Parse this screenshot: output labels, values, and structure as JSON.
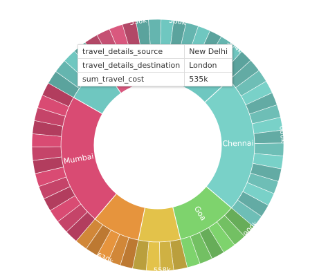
{
  "chart_data": {
    "type": "sunburst",
    "inner_ring": [
      {
        "name": "New Delhi",
        "label": "New",
        "color": "#6fc7c0",
        "share": 0.16
      },
      {
        "name": "Chennai",
        "label": "Chennai",
        "color": "#79d1c8",
        "share": 0.23
      },
      {
        "name": "Goa",
        "label": "Goa",
        "color": "#7ed36d",
        "share": 0.1
      },
      {
        "name": "segment-b",
        "label": "",
        "color": "#e3c24a",
        "share": 0.07
      },
      {
        "name": "segment-o",
        "label": "",
        "color": "#e6943d",
        "share": 0.08
      },
      {
        "name": "Mumbai",
        "label": "Mumbai",
        "color": "#d94b73",
        "share": 0.22
      },
      {
        "name": "segment-t",
        "label": "",
        "color": "#6fc7c0",
        "share": 0.07
      },
      {
        "name": "segment-top",
        "label": "",
        "color": "#d9587e",
        "share": 0.07
      }
    ],
    "outer_labels": [
      "536k",
      "560k",
      "504k",
      "600k",
      "900k",
      "558k",
      "630k"
    ],
    "tooltip": [
      {
        "field": "travel_details_source",
        "value": "New Delhi"
      },
      {
        "field": "travel_details_destination",
        "value": "London"
      },
      {
        "field": "sum_travel_cost",
        "value": "535k"
      }
    ]
  }
}
